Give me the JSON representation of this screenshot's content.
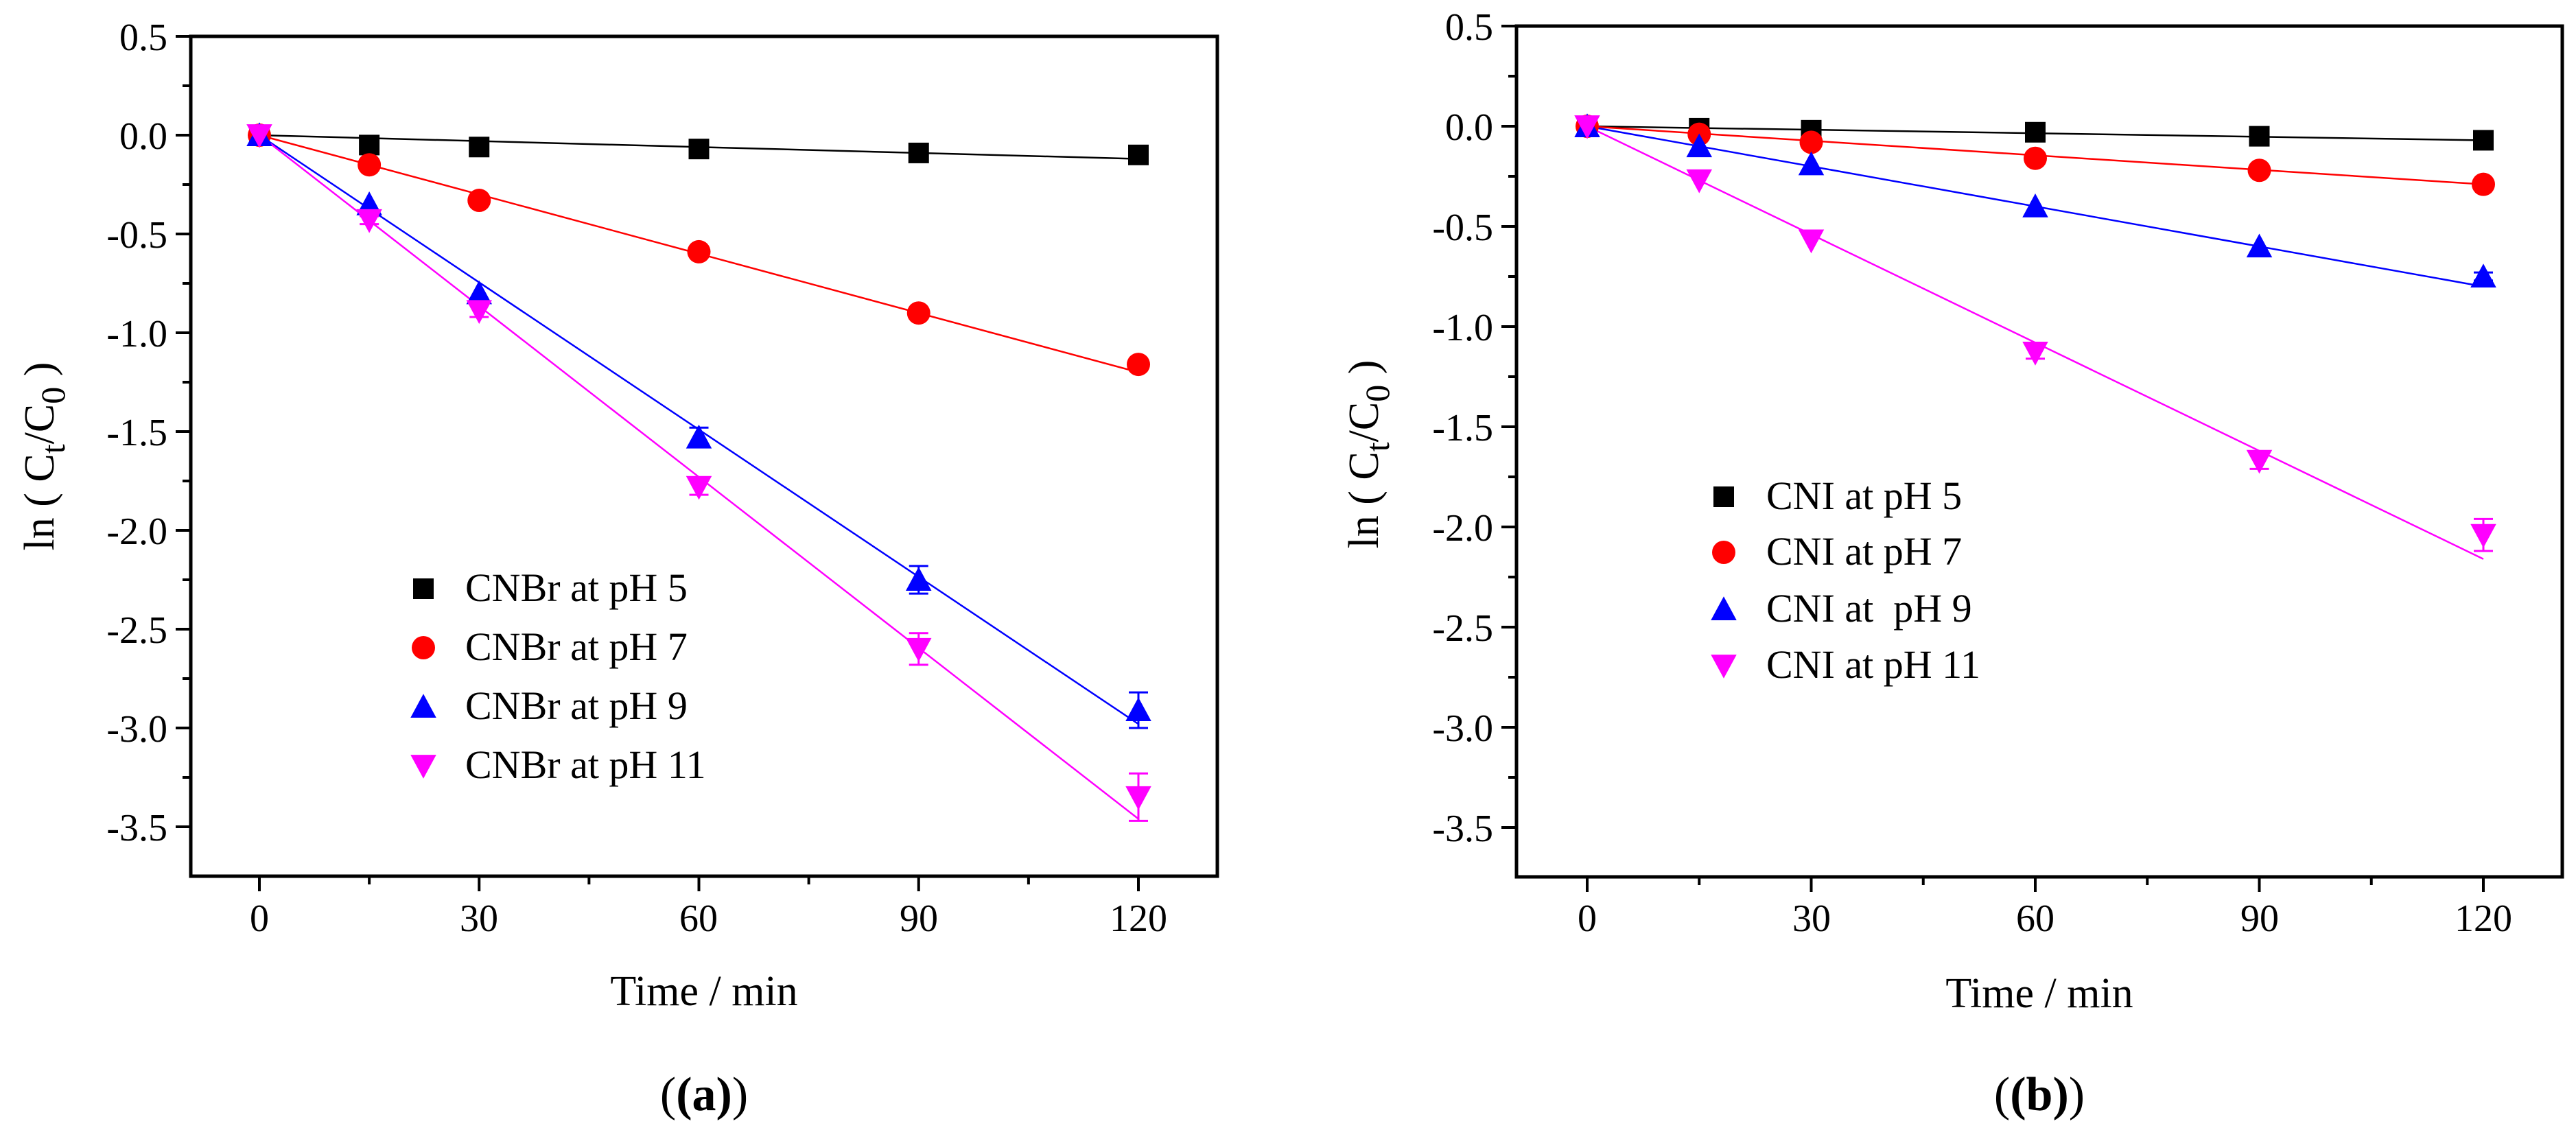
{
  "chart_data": [
    {
      "type": "scatter",
      "panel_label": "(a)",
      "xlabel": "Time / min",
      "ylabel": "ln ( Ct/C0 )",
      "ylabel_parts": {
        "prefix": "ln ( C",
        "sub1": "t",
        "mid": "/C",
        "sub2": "0",
        "suffix": " )"
      },
      "xlim": [
        -10,
        130
      ],
      "ylim": [
        -3.75,
        0.5
      ],
      "xticks": [
        0,
        30,
        60,
        90,
        120
      ],
      "xtick_labels": [
        "0",
        "30",
        "60",
        "90",
        "120"
      ],
      "yticks": [
        0.5,
        0.0,
        -0.5,
        -1.0,
        -1.5,
        -2.0,
        -2.5,
        -3.0,
        -3.5
      ],
      "ytick_labels": [
        "0.5",
        "0.0",
        "-0.5",
        "-1.0",
        "-1.5",
        "-2.0",
        "-2.5",
        "-3.0",
        "-3.5"
      ],
      "grid": false,
      "legend_position": "lower-left",
      "x": [
        0,
        15,
        30,
        60,
        90,
        120
      ],
      "series": [
        {
          "name": "CNBr at pH 5",
          "marker": "square",
          "color": "#000000",
          "values": [
            0.0,
            -0.05,
            -0.06,
            -0.07,
            -0.09,
            -0.1
          ],
          "errors": [
            0,
            0,
            0,
            0,
            0,
            0
          ],
          "fit": [
            0.0,
            -0.12
          ]
        },
        {
          "name": "CNBr at pH 7",
          "marker": "circle",
          "color": "#ff0000",
          "values": [
            0.0,
            -0.15,
            -0.33,
            -0.59,
            -0.9,
            -1.16
          ],
          "errors": [
            0,
            0,
            0,
            0,
            0,
            0.03
          ],
          "fit": [
            0.0,
            -1.2
          ]
        },
        {
          "name": "CNBr at pH 9",
          "marker": "triangle-up",
          "color": "#0000ff",
          "values": [
            0.0,
            -0.35,
            -0.8,
            -1.53,
            -2.25,
            -2.91
          ],
          "errors": [
            0,
            0,
            0,
            0.05,
            0.07,
            0.09
          ],
          "fit": [
            0.0,
            -2.98
          ]
        },
        {
          "name": "CNBr at pH 11",
          "marker": "triangle-down",
          "color": "#ff00ff",
          "values": [
            0.0,
            -0.43,
            -0.89,
            -1.78,
            -2.6,
            -3.35
          ],
          "errors": [
            0,
            0.02,
            0.03,
            0.04,
            0.08,
            0.12
          ],
          "fit": [
            0.0,
            -3.46
          ]
        }
      ]
    },
    {
      "type": "scatter",
      "panel_label": "(b)",
      "xlabel": "Time / min",
      "ylabel": "ln ( Ct/C0 )",
      "ylabel_parts": {
        "prefix": "ln ( C",
        "sub1": "t",
        "mid": "/C",
        "sub2": "0",
        "suffix": " )"
      },
      "xlim": [
        -10,
        130
      ],
      "ylim": [
        -3.75,
        0.5
      ],
      "xticks": [
        0,
        30,
        60,
        90,
        120
      ],
      "xtick_labels": [
        "0",
        "30",
        "60",
        "90",
        "120"
      ],
      "yticks": [
        0.5,
        0.0,
        -0.5,
        -1.0,
        -1.5,
        -2.0,
        -2.5,
        -3.0,
        -3.5
      ],
      "ytick_labels": [
        "0.5",
        "0.0",
        "-0.5",
        "-1.0",
        "-1.5",
        "-2.0",
        "-2.5",
        "-3.0",
        "-3.5"
      ],
      "grid": false,
      "legend_position": "middle-left",
      "x": [
        0,
        15,
        30,
        60,
        90,
        120
      ],
      "series": [
        {
          "name": "CNI at pH 5",
          "marker": "square",
          "color": "#000000",
          "values": [
            0.0,
            -0.01,
            -0.02,
            -0.03,
            -0.05,
            -0.07
          ],
          "errors": [
            0,
            0,
            0,
            0,
            0,
            0
          ],
          "fit": [
            0.0,
            -0.07
          ]
        },
        {
          "name": "CNI at pH 7",
          "marker": "circle",
          "color": "#ff0000",
          "values": [
            0.0,
            -0.04,
            -0.08,
            -0.16,
            -0.22,
            -0.29
          ],
          "errors": [
            0,
            0,
            0,
            0,
            0,
            0
          ],
          "fit": [
            0.0,
            -0.29
          ]
        },
        {
          "name": "CNI at  pH 9",
          "marker": "triangle-up",
          "color": "#0000ff",
          "values": [
            0.0,
            -0.1,
            -0.19,
            -0.4,
            -0.6,
            -0.75
          ],
          "errors": [
            0,
            0,
            0,
            0,
            0,
            0.02
          ],
          "fit": [
            0.0,
            -0.8
          ]
        },
        {
          "name": "CNI at pH 11",
          "marker": "triangle-down",
          "color": "#ff00ff",
          "values": [
            0.0,
            -0.27,
            -0.57,
            -1.13,
            -1.67,
            -2.04
          ],
          "errors": [
            0,
            0,
            0,
            0.03,
            0.04,
            0.08
          ],
          "fit": [
            0.0,
            -2.16
          ]
        }
      ]
    }
  ]
}
